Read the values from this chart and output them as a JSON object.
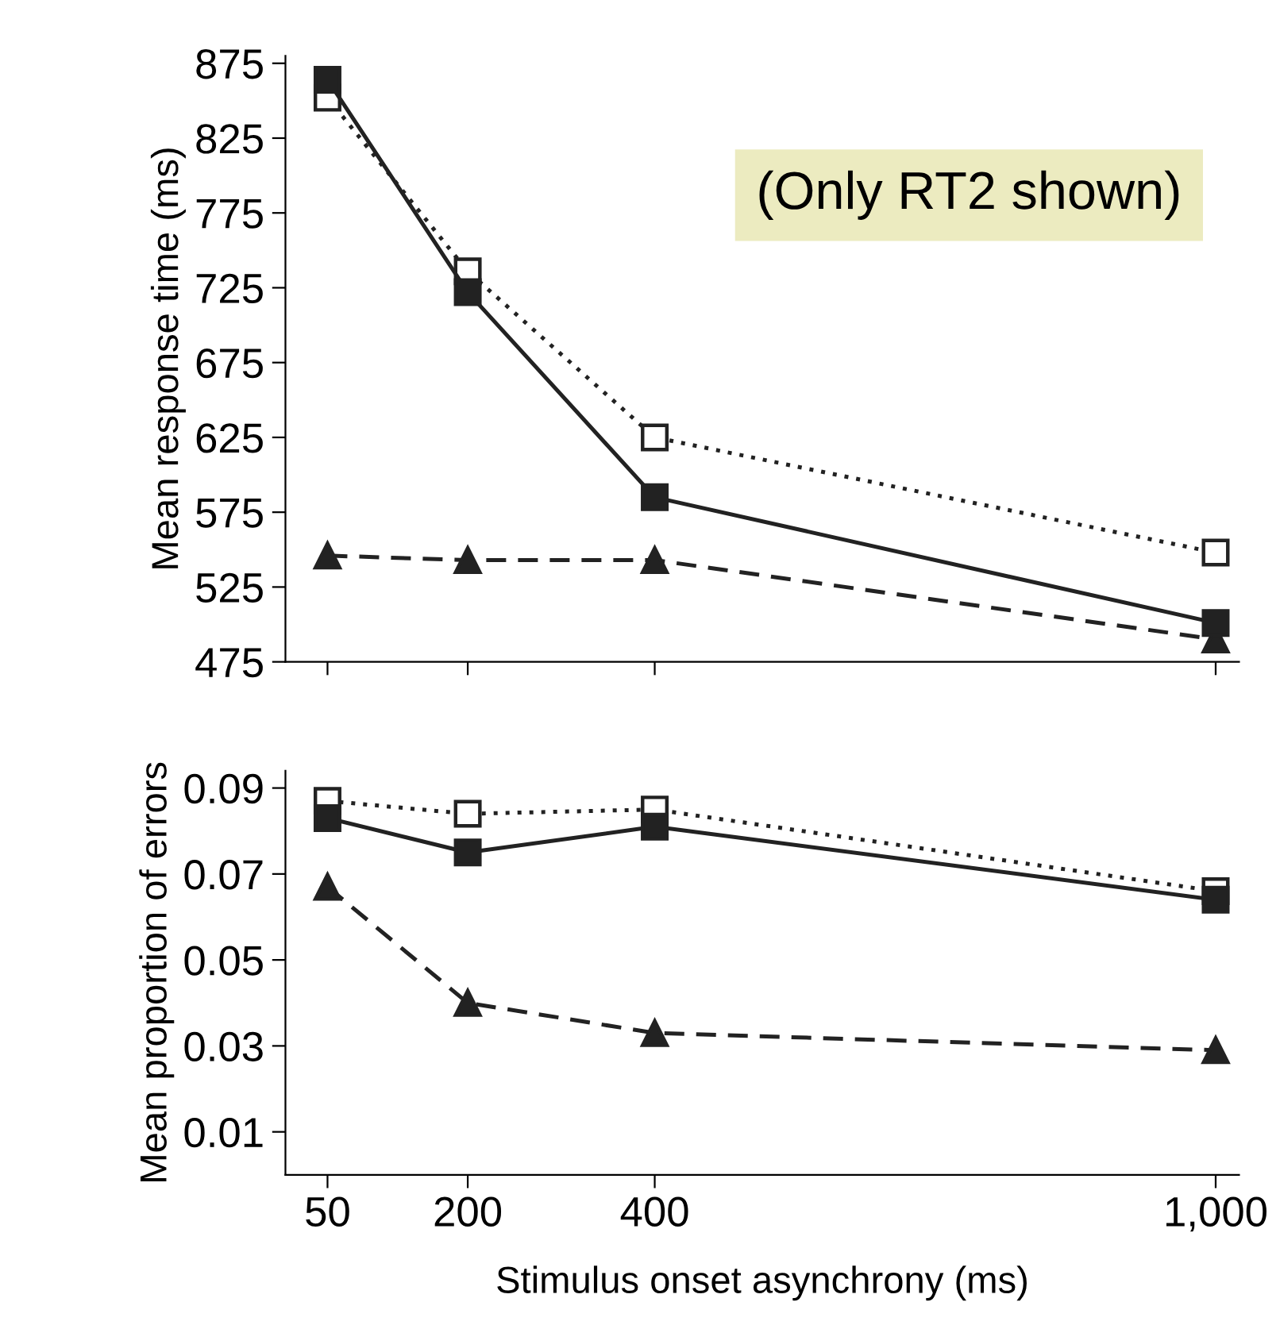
{
  "chart_data": [
    {
      "type": "line",
      "ylabel": "Mean response time (ms)",
      "annotations": [
        "(Only RT2 shown)"
      ],
      "x": [
        50,
        200,
        400,
        1000
      ],
      "xlim": [
        5,
        1025
      ],
      "xticks": [
        {
          "value": 50,
          "label": null
        },
        {
          "value": 200,
          "label": null
        },
        {
          "value": 400,
          "label": null
        },
        {
          "value": 1000,
          "label": null
        }
      ],
      "ylim": [
        475,
        880
      ],
      "yticks": [
        475,
        525,
        575,
        625,
        675,
        725,
        775,
        825,
        875
      ],
      "tick_labels": "y",
      "grid": false,
      "legend": false,
      "series": [
        {
          "color": "#222222",
          "marker": "square",
          "line_style": "solid",
          "values": [
            864,
            722,
            585,
            501
          ]
        },
        {
          "color": "#222222",
          "marker": "square",
          "line_style": "dotted",
          "values": [
            852,
            736,
            625,
            548
          ]
        },
        {
          "color": "#222222",
          "marker": "triangle",
          "line_style": "dashed",
          "values": [
            546,
            543,
            543,
            490
          ]
        }
      ]
    },
    {
      "type": "line",
      "ylabel": "Mean proportion of errors",
      "xlabel": "Stimulus onset asynchrony (ms)",
      "x": [
        50,
        200,
        400,
        1000
      ],
      "xlim": [
        5,
        1025
      ],
      "xticks": [
        50,
        200,
        400,
        {
          "value": 1000,
          "label": "1,000"
        }
      ],
      "ylim": [
        0,
        0.094
      ],
      "yticks": [
        {
          "value": 0.01,
          "label": "0.01"
        },
        {
          "value": 0.03,
          "label": "0.03"
        },
        {
          "value": 0.05,
          "label": "0.05"
        },
        {
          "value": 0.07,
          "label": "0.07"
        },
        {
          "value": 0.09,
          "label": "0.09"
        }
      ],
      "grid": false,
      "legend": false,
      "series": [
        {
          "color": "#222222",
          "marker": "square",
          "line_style": "solid",
          "values": [
            0.083,
            0.075,
            0.081,
            0.064
          ]
        },
        {
          "color": "#222222",
          "marker": "square",
          "line_style": "dotted",
          "values": [
            0.087,
            0.084,
            0.085,
            0.066
          ]
        },
        {
          "color": "#222222",
          "marker": "triangle",
          "line_style": "dashed",
          "values": [
            0.067,
            0.04,
            0.033,
            0.029
          ]
        }
      ]
    }
  ]
}
